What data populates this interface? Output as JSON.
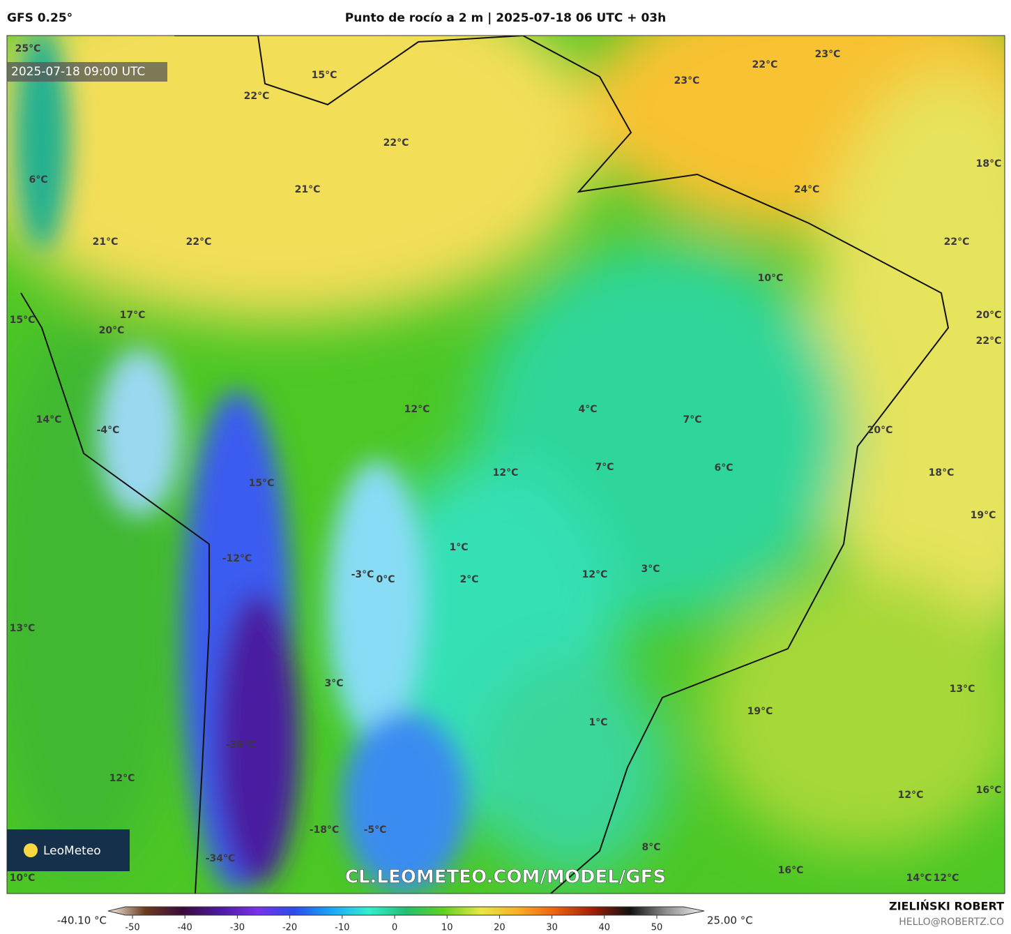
{
  "header": {
    "model": "GFS 0.25°",
    "title": "Punto de rocío a 2 m | 2025-07-18 06 UTC + 03h",
    "valid_time": "2025-07-18 09:00 UTC"
  },
  "map": {
    "labels": [
      "25°C",
      "15°C",
      "22°C",
      "23°C",
      "22°C",
      "23°C",
      "22°C",
      "18°C",
      "6°C",
      "21°C",
      "24°C",
      "21°C",
      "22°C",
      "22°C",
      "10°C",
      "17°C",
      "15°C",
      "20°C",
      "20°C",
      "22°C",
      "12°C",
      "4°C",
      "7°C",
      "14°C",
      "-4°C",
      "20°C",
      "6°C",
      "7°C",
      "12°C",
      "18°C",
      "15°C",
      "19°C",
      "1°C",
      "-12°C",
      "12°C",
      "3°C",
      "-3°C",
      "0°C",
      "2°C",
      "13°C",
      "3°C",
      "13°C",
      "19°C",
      "1°C",
      "-36°C",
      "12°C",
      "12°C",
      "16°C",
      "-18°C",
      "-5°C",
      "8°C",
      "16°C",
      "-34°C",
      "10°C",
      "14°C",
      "12°C"
    ],
    "watermark": "CL.LEOMETEO.COM/MODEL/GFS",
    "logo": "LeoMeteo"
  },
  "colorbar": {
    "min_label": "-40.10 °C",
    "max_label": "25.00 °C",
    "ticks": [
      -50,
      -40,
      -30,
      -20,
      -10,
      0,
      10,
      20,
      30,
      40,
      50
    ],
    "colors": [
      "#f4efe6",
      "#6b3a1e",
      "#3a0a3a",
      "#4a1aa0",
      "#7a30f0",
      "#2a4cf0",
      "#18a8f8",
      "#30f0d0",
      "#20c070",
      "#60d020",
      "#e8e840",
      "#f8b020",
      "#f06010",
      "#a02008",
      "#101010",
      "#909090",
      "#f0f0f0"
    ]
  },
  "credits": {
    "author": "ZIELIŃSKI ROBERT",
    "email": "HELLO@ROBERTZ.CO"
  }
}
